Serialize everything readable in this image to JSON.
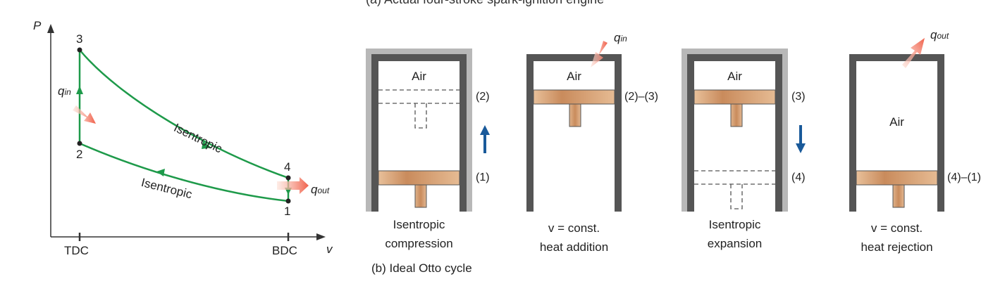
{
  "top_caption": "(a) Actual four-stroke spark-ignition engine",
  "pv": {
    "axis_p": "P",
    "axis_v": "v",
    "tdc": "TDC",
    "bdc": "BDC",
    "points": [
      "1",
      "2",
      "3",
      "4"
    ],
    "isentropic_upper": "Isentropic",
    "isentropic_lower": "Isentropic",
    "q_in": "q",
    "q_in_sub": "in",
    "q_out": "q",
    "q_out_sub": "out"
  },
  "cylinders": [
    {
      "air": "Air",
      "state_labels": [
        "(2)",
        "(1)"
      ],
      "caption_line1": "Isentropic",
      "caption_line2": "compression"
    },
    {
      "air": "Air",
      "state_labels": [
        "(2)–(3)"
      ],
      "caption_line1": "v = const.",
      "caption_line2": "heat addition",
      "q": "q",
      "q_sub": "in"
    },
    {
      "air": "Air",
      "state_labels": [
        "(3)",
        "(4)"
      ],
      "caption_line1": "Isentropic",
      "caption_line2": "expansion"
    },
    {
      "air": "Air",
      "state_labels": [
        "(4)–(1)"
      ],
      "caption_line1": "v = const.",
      "caption_line2": "heat rejection",
      "q": "q",
      "q_sub": "out"
    }
  ],
  "bottom_caption": "(b) Ideal Otto cycle",
  "colors": {
    "process_line": "#1e9a4a",
    "heat_arrow": "#f0604a",
    "motion_arrow": "#1a5a9a",
    "cylinder_wall": "#555555",
    "cylinder_shadow": "#b8b8b8",
    "piston": "#d9a377"
  }
}
